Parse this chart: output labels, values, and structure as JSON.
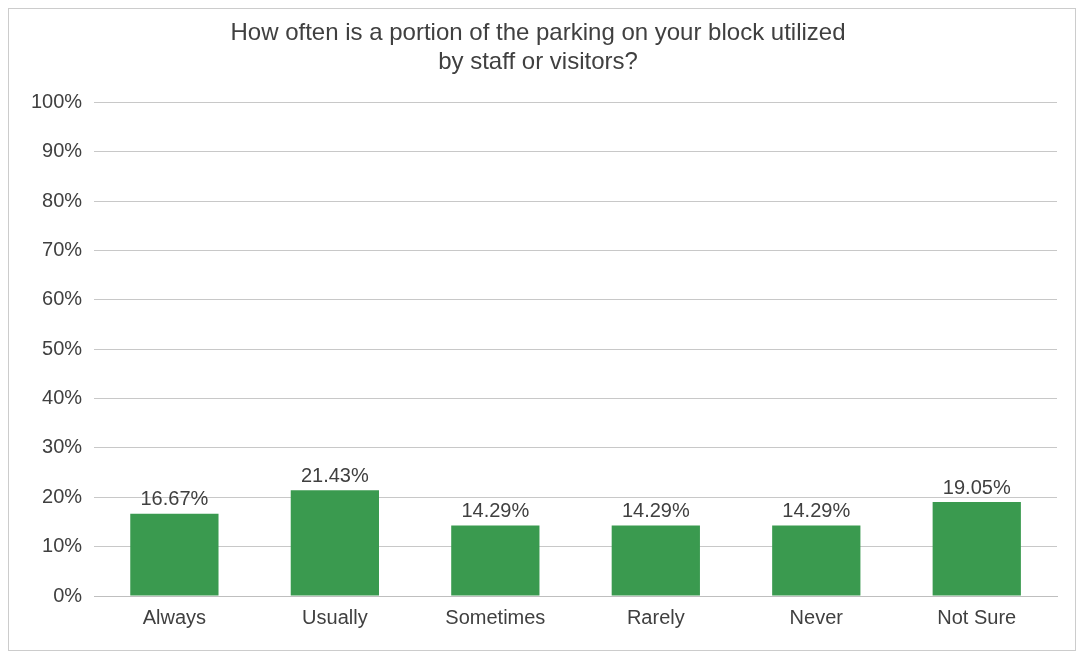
{
  "chart_data": {
    "type": "bar",
    "title": [
      "How often is a portion of the parking on your block utilized",
      "by staff or visitors?"
    ],
    "categories": [
      "Always",
      "Usually",
      "Sometimes",
      "Rarely",
      "Never",
      "Not Sure"
    ],
    "values": [
      16.67,
      21.43,
      14.29,
      14.29,
      14.29,
      19.05
    ],
    "value_labels": [
      "16.67%",
      "21.43%",
      "14.29%",
      "14.29%",
      "14.29%",
      "19.05%"
    ],
    "color": "#3a9a4f",
    "ylim": [
      0,
      100
    ],
    "yticks": [
      {
        "value": 0,
        "label": "0%"
      },
      {
        "value": 10,
        "label": "10%"
      },
      {
        "value": 20,
        "label": "20%"
      },
      {
        "value": 30,
        "label": "30%"
      },
      {
        "value": 40,
        "label": "40%"
      },
      {
        "value": 50,
        "label": "50%"
      },
      {
        "value": 60,
        "label": "60%"
      },
      {
        "value": 70,
        "label": "70%"
      },
      {
        "value": 80,
        "label": "80%"
      },
      {
        "value": 90,
        "label": "90%"
      },
      {
        "value": 100,
        "label": "100%"
      }
    ],
    "grid": "y",
    "legend": false
  }
}
